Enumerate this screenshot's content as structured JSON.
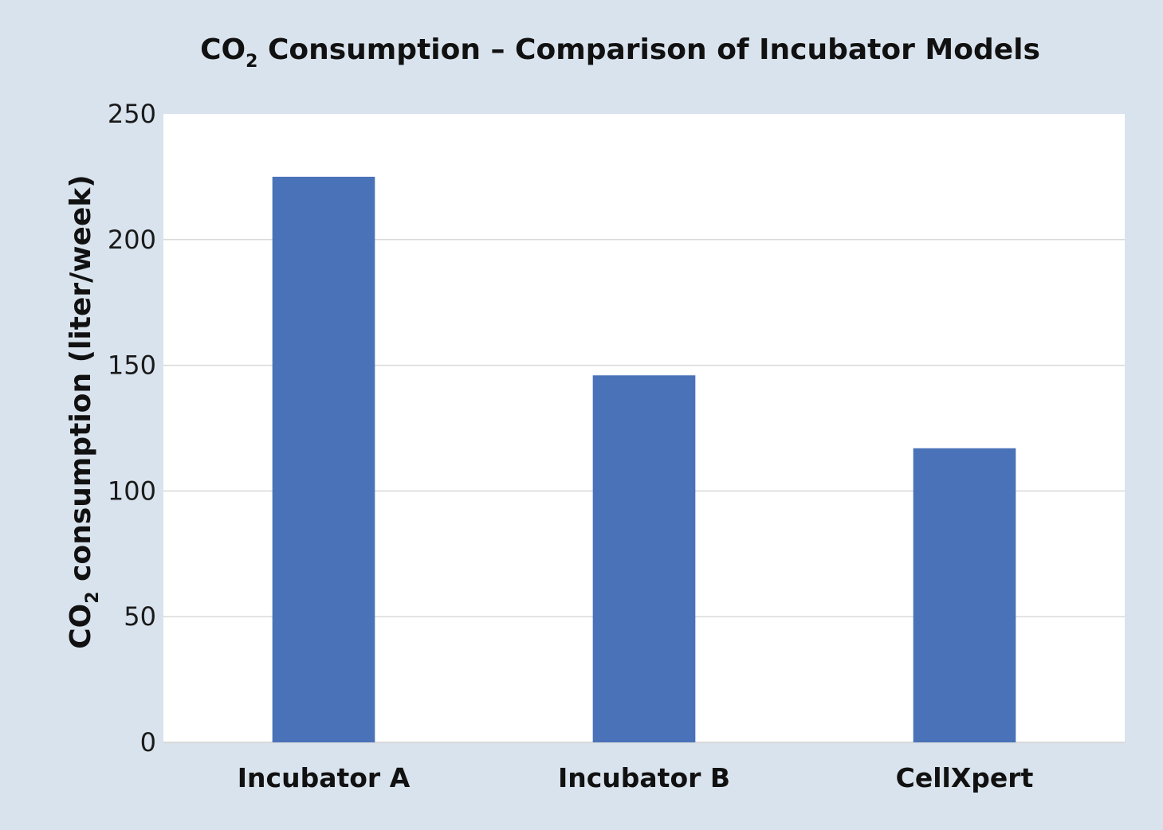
{
  "chart_data": {
    "type": "bar",
    "title": {
      "prefix": "CO",
      "subscript": "2",
      "suffix": " Consumption – Comparison of Incubator Models"
    },
    "ylabel": {
      "prefix": "CO",
      "subscript": "2",
      "suffix": " consumption (liter/week)"
    },
    "xlabel": "",
    "categories": [
      "Incubator A",
      "Incubator B",
      "CellXpert"
    ],
    "values": [
      225,
      146,
      117
    ],
    "ylim": [
      0,
      250
    ],
    "yticks": [
      0,
      50,
      100,
      150,
      200,
      250
    ],
    "grid": true,
    "colors": {
      "bar": "#4a72b8",
      "grid": "#d9d9d9",
      "plot_bg": "#ffffff",
      "page_bg": "#d9e3ed"
    }
  }
}
